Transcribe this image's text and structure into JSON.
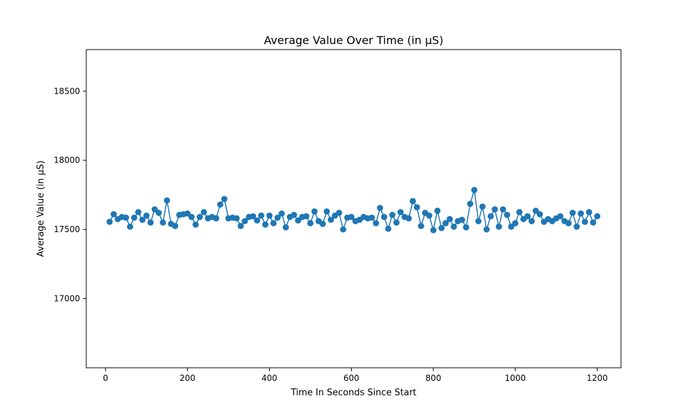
{
  "chart_data": {
    "type": "line",
    "title": "Average Value Over Time (in µS)",
    "xlabel": "Time In Seconds Since Start",
    "ylabel": "Average Value (in µS)",
    "xlim": [
      -47,
      1258
    ],
    "ylim": [
      16500,
      18800
    ],
    "xticks": [
      0,
      200,
      400,
      600,
      800,
      1000,
      1200
    ],
    "yticks": [
      17000,
      17500,
      18000,
      18500
    ],
    "xtick_labels": [
      "0",
      "200",
      "400",
      "600",
      "800",
      "1000",
      "1200"
    ],
    "ytick_labels": [
      "17000",
      "17500",
      "18000",
      "18500"
    ],
    "grid": false,
    "color": "#1f77b4",
    "series": [
      {
        "x": [
          10,
          20,
          30,
          40,
          50,
          60,
          70,
          80,
          90,
          100,
          110,
          120,
          130,
          140,
          150,
          160,
          170,
          180,
          190,
          200,
          210,
          220,
          230,
          240,
          250,
          260,
          270,
          280,
          290,
          300,
          310,
          320,
          330,
          340,
          350,
          360,
          370,
          380,
          390,
          400,
          410,
          420,
          430,
          440,
          450,
          460,
          470,
          480,
          490,
          500,
          510,
          520,
          530,
          540,
          550,
          560,
          570,
          580,
          590,
          600,
          610,
          620,
          630,
          640,
          650,
          660,
          670,
          680,
          690,
          700,
          710,
          720,
          730,
          740,
          750,
          760,
          770,
          780,
          790,
          800,
          810,
          820,
          830,
          840,
          850,
          860,
          870,
          880,
          890,
          900,
          910,
          920,
          930,
          940,
          950,
          960,
          970,
          980,
          990,
          1000,
          1010,
          1020,
          1030,
          1040,
          1050,
          1060,
          1070,
          1080,
          1090,
          1100,
          1110,
          1120,
          1130,
          1140,
          1150,
          1160,
          1170,
          1180,
          1190,
          1200
        ],
        "y": [
          17555,
          17610,
          17575,
          17590,
          17585,
          17520,
          17585,
          17625,
          17570,
          17600,
          17550,
          17645,
          17620,
          17550,
          17710,
          17540,
          17525,
          17605,
          17610,
          17615,
          17590,
          17535,
          17590,
          17625,
          17580,
          17590,
          17580,
          17680,
          17720,
          17580,
          17585,
          17580,
          17525,
          17560,
          17590,
          17595,
          17565,
          17600,
          17535,
          17600,
          17545,
          17585,
          17615,
          17515,
          17590,
          17605,
          17565,
          17590,
          17595,
          17545,
          17630,
          17560,
          17540,
          17630,
          17570,
          17600,
          17620,
          17500,
          17585,
          17590,
          17560,
          17570,
          17590,
          17580,
          17585,
          17545,
          17655,
          17590,
          17505,
          17605,
          17550,
          17625,
          17590,
          17580,
          17705,
          17660,
          17525,
          17620,
          17600,
          17495,
          17635,
          17510,
          17545,
          17575,
          17520,
          17560,
          17570,
          17515,
          17685,
          17785,
          17560,
          17665,
          17500,
          17595,
          17645,
          17520,
          17645,
          17605,
          17520,
          17545,
          17625,
          17575,
          17595,
          17560,
          17635,
          17610,
          17555,
          17575,
          17560,
          17580,
          17595,
          17560,
          17545,
          17620,
          17520,
          17615,
          17555,
          17625,
          17550,
          17595
        ]
      }
    ]
  }
}
